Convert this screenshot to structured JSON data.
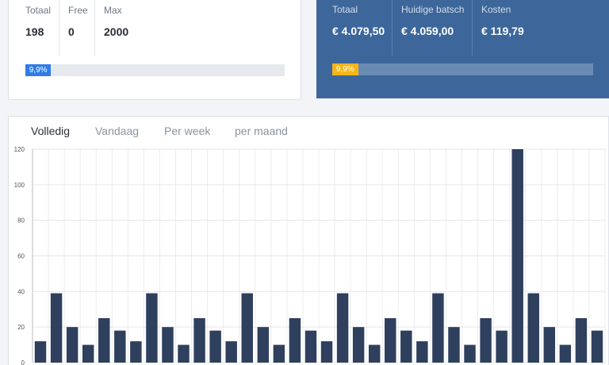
{
  "usage": {
    "stats": [
      {
        "label": "Totaal",
        "value": "198"
      },
      {
        "label": "Free",
        "value": "0"
      },
      {
        "label": "Max",
        "value": "2000"
      }
    ],
    "progress_label": "9,9%",
    "progress_fraction": 0.099,
    "bar_color": "#2f7ce8"
  },
  "costs": {
    "stats": [
      {
        "label": "Totaal",
        "value": "€ 4.079,50"
      },
      {
        "label": "Huidige batsch",
        "value": "€ 4.059,00"
      },
      {
        "label": "Kosten",
        "value": "€ 119,79"
      }
    ],
    "progress_label": "9,9%",
    "progress_fraction": 0.099,
    "panel_color": "#3d679b",
    "bar_color": "#f4b619"
  },
  "tabs": [
    {
      "label": "Volledig",
      "active": true
    },
    {
      "label": "Vandaag",
      "active": false
    },
    {
      "label": "Per week",
      "active": false
    },
    {
      "label": "per maand",
      "active": false
    }
  ],
  "chart_data": {
    "type": "bar",
    "title": "",
    "xlabel": "",
    "ylabel": "",
    "ylim": [
      0,
      120
    ],
    "yticks": [
      0,
      20,
      40,
      60,
      80,
      100,
      120
    ],
    "grid": true,
    "bar_color": "#2e405e",
    "values": [
      12,
      39,
      20,
      10,
      25,
      18,
      12,
      39,
      20,
      10,
      25,
      18,
      12,
      39,
      20,
      10,
      25,
      18,
      12,
      39,
      20,
      10,
      25,
      18,
      12,
      39,
      20,
      10,
      25,
      18,
      120,
      39,
      20,
      10,
      25,
      18
    ]
  }
}
